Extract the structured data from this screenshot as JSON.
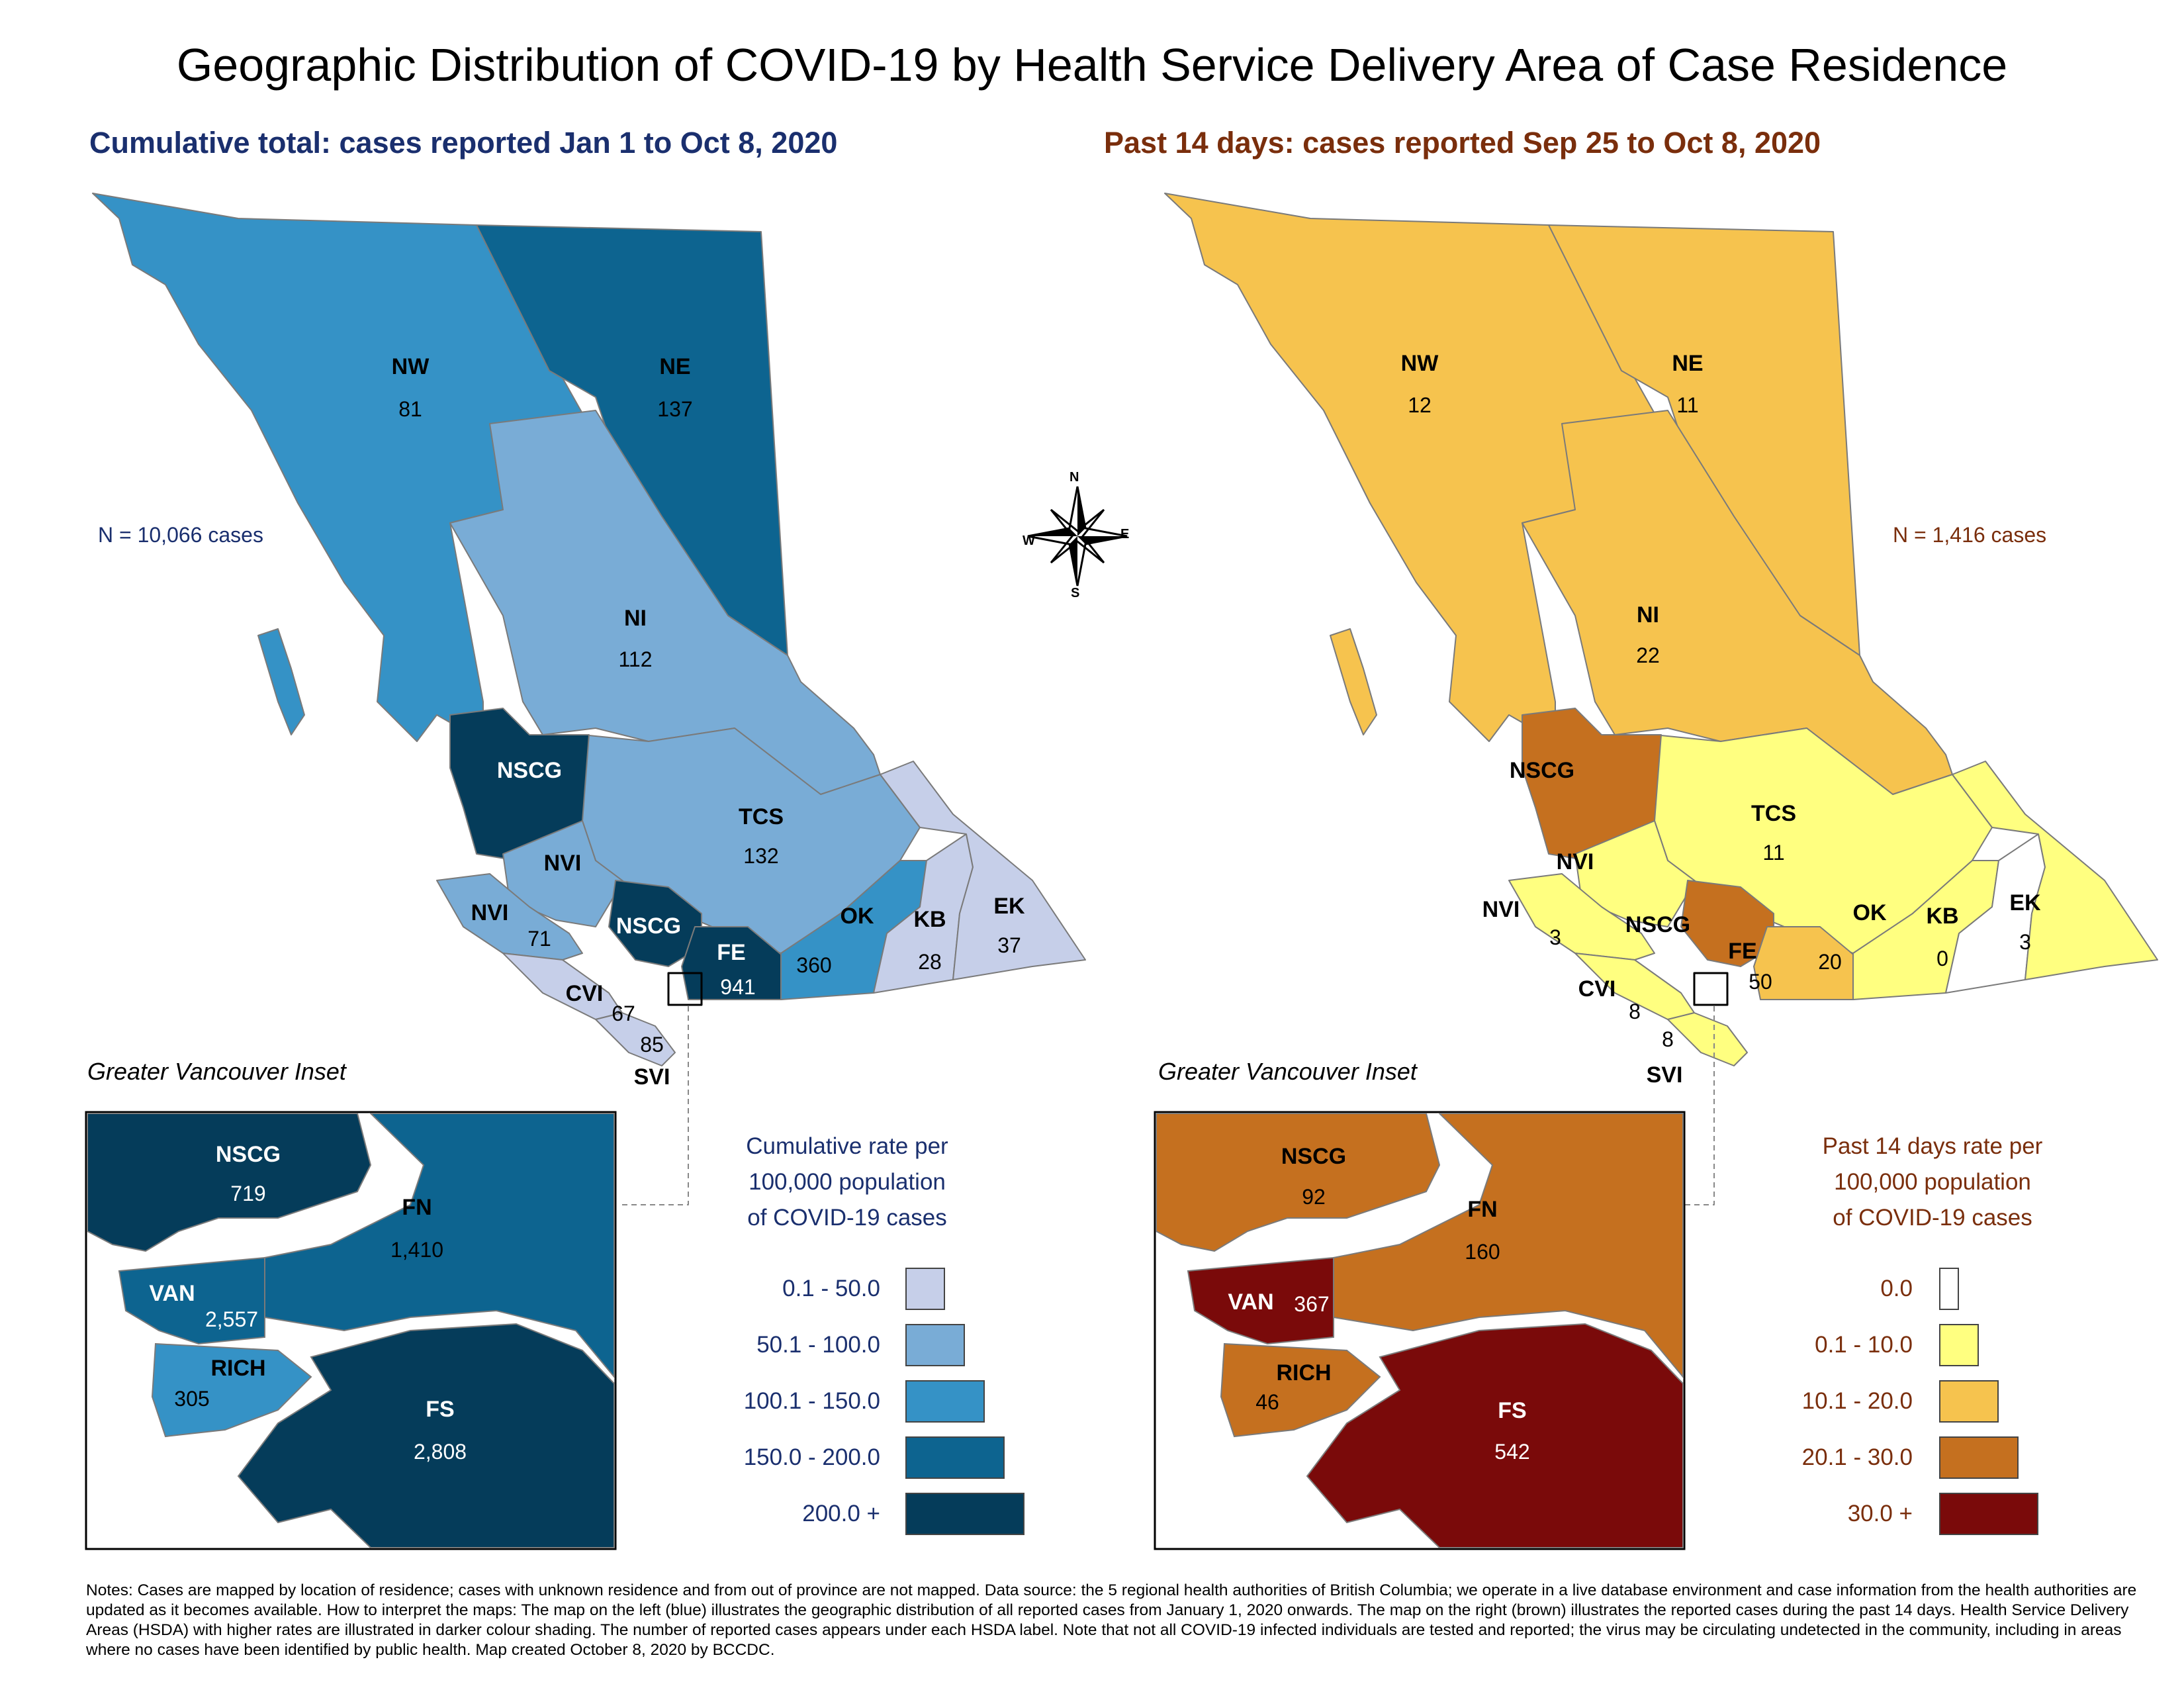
{
  "title": "Geographic Distribution of COVID-19 by Health Service Delivery Area of Case Residence",
  "left": {
    "subtitle": "Cumulative total: cases reported Jan 1 to Oct 8, 2020",
    "n_text": "N = 10,066 cases",
    "regions": {
      "nw": {
        "label": "NW",
        "value": "81"
      },
      "ne": {
        "label": "NE",
        "value": "137"
      },
      "ni": {
        "label": "NI",
        "value": "112"
      },
      "nscg": {
        "label": "NSCG"
      },
      "tcs": {
        "label": "TCS",
        "value": "132"
      },
      "nvi_top": {
        "label": "NVI"
      },
      "nvi": {
        "label": "NVI",
        "value": "71"
      },
      "nscg_lower": {
        "label": "NSCG"
      },
      "ok": {
        "label": "OK",
        "value": "360"
      },
      "kb": {
        "label": "KB",
        "value": "28"
      },
      "ek": {
        "label": "EK",
        "value": "37"
      },
      "fe": {
        "label": "FE",
        "value": "941"
      },
      "cvi": {
        "label": "CVI",
        "value": "67"
      },
      "svi": {
        "label": "SVI",
        "value": "85"
      }
    },
    "inset_title": "Greater Vancouver Inset",
    "inset": {
      "nscg": {
        "label": "NSCG",
        "value": "719"
      },
      "fn": {
        "label": "FN",
        "value": "1,410"
      },
      "van": {
        "label": "VAN",
        "value": "2,557"
      },
      "rich": {
        "label": "RICH",
        "value": "305"
      },
      "fs": {
        "label": "FS",
        "value": "2,808"
      }
    },
    "legend": {
      "title_lines": [
        "Cumulative rate per",
        "100,000 population",
        "of COVID-19 cases"
      ],
      "items": [
        {
          "label": "0.1 - 50.0",
          "color": "#c6cfe9"
        },
        {
          "label": "50.1 - 100.0",
          "color": "#79acd6"
        },
        {
          "label": "100.1 - 150.0",
          "color": "#3592c6"
        },
        {
          "label": "150.0 - 200.0",
          "color": "#0d6490"
        },
        {
          "label": "200.0 +",
          "color": "#053c5a"
        }
      ]
    }
  },
  "right": {
    "subtitle": "Past 14 days: cases reported Sep 25 to Oct 8, 2020",
    "n_text": "N = 1,416 cases",
    "regions": {
      "nw": {
        "label": "NW",
        "value": "12"
      },
      "ne": {
        "label": "NE",
        "value": "11"
      },
      "ni": {
        "label": "NI",
        "value": "22"
      },
      "nscg": {
        "label": "NSCG"
      },
      "tcs": {
        "label": "TCS",
        "value": "11"
      },
      "nvi_top": {
        "label": "NVI"
      },
      "nvi": {
        "label": "NVI",
        "value": "3"
      },
      "nscg_lower": {
        "label": "NSCG"
      },
      "ok": {
        "label": "OK",
        "value": "20"
      },
      "kb": {
        "label": "KB",
        "value": "0"
      },
      "ek": {
        "label": "EK",
        "value": "3"
      },
      "fe": {
        "label": "FE",
        "value": "50"
      },
      "cvi": {
        "label": "CVI",
        "value": "8"
      },
      "svi": {
        "label": "SVI",
        "value": "8"
      }
    },
    "inset_title": "Greater Vancouver Inset",
    "inset": {
      "nscg": {
        "label": "NSCG",
        "value": "92"
      },
      "fn": {
        "label": "FN",
        "value": "160"
      },
      "van": {
        "label": "VAN",
        "value": "367"
      },
      "rich": {
        "label": "RICH",
        "value": "46"
      },
      "fs": {
        "label": "FS",
        "value": "542"
      }
    },
    "legend": {
      "title_lines": [
        "Past 14 days rate per",
        "100,000 population",
        "of COVID-19 cases"
      ],
      "items": [
        {
          "label": "0.0",
          "color": "#ffffff"
        },
        {
          "label": "0.1 - 10.0",
          "color": "#ffff80"
        },
        {
          "label": "10.1 - 20.0",
          "color": "#f6c34e"
        },
        {
          "label": "20.1 - 30.0",
          "color": "#c5701f"
        },
        {
          "label": "30.0 +",
          "color": "#7a0a0a"
        }
      ]
    }
  },
  "compass": {
    "n": "N",
    "s": "S",
    "e": "E",
    "w": "W"
  },
  "notes": "Notes: Cases are mapped by location of residence; cases with unknown residence and from out of province are not mapped. Data source: the 5 regional health authorities of British Columbia; we operate in a live database environment and case information from the health authorities are updated as it becomes available. How to interpret the maps: The map on the left (blue) illustrates the geographic distribution of all reported cases from January 1, 2020 onwards. The map on the right (brown) illustrates the reported cases during the past 14 days. Health Service Delivery Areas (HSDA) with higher rates are illustrated in darker colour shading. The number of reported cases appears under each HSDA label. Note that not all COVID-19 infected individuals are tested and reported; the virus may be circulating undetected in the community, including in areas where no cases have been identified by public health. Map created October 8, 2020 by BCCDC."
}
